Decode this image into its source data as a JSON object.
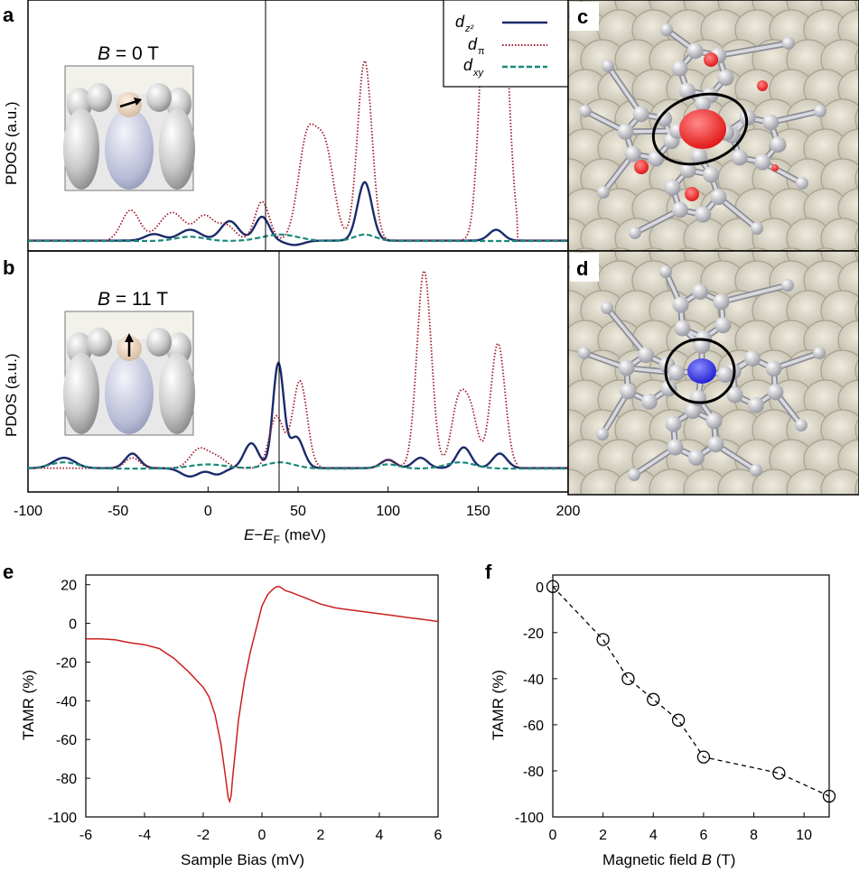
{
  "figure": {
    "panels": {
      "a": "a",
      "b": "b",
      "c": "c",
      "d": "d",
      "e": "e",
      "f": "f"
    }
  },
  "pdos_legend": {
    "dz2": {
      "base": "d",
      "sub": "z²"
    },
    "dpi": {
      "base": "d",
      "sub": "π"
    },
    "dxy": {
      "base": "d",
      "sub": "xy"
    }
  },
  "colors": {
    "dz2": "#1b2a6b",
    "dpi": "#a01c2e",
    "dxy": "#1a8a7a",
    "tamr_e": "#cc1f1f",
    "tamr_f": "#000000",
    "spin_c": "#ff2020",
    "spin_d": "#2828e0"
  },
  "insets": {
    "a_label": {
      "prefix": "B",
      "value": " = 0 T"
    },
    "b_label": {
      "prefix": "B",
      "value": " = 11 T"
    }
  },
  "chart_data": [
    {
      "id": "a",
      "type": "line",
      "ylabel": "PDOS (a.u.)",
      "xlim": [
        -100,
        200
      ],
      "fermi_marker_meV": 32,
      "series": [
        {
          "name": "dz2",
          "style": "solid",
          "peaks": [
            [
              -30,
              0.03,
              5
            ],
            [
              -10,
              0.05,
              6
            ],
            [
              12,
              0.09,
              5
            ],
            [
              30,
              0.11,
              4
            ],
            [
              87,
              0.27,
              4
            ],
            [
              48,
              -0.02,
              5
            ],
            [
              160,
              0.05,
              4
            ]
          ],
          "base": 0.015
        },
        {
          "name": "dpi",
          "style": "dotted",
          "peaks": [
            [
              -43,
              0.14,
              5
            ],
            [
              -20,
              0.13,
              7
            ],
            [
              -2,
              0.11,
              5
            ],
            [
              10,
              0.07,
              5
            ],
            [
              30,
              0.18,
              4
            ],
            [
              55,
              0.46,
              5
            ],
            [
              65,
              0.41,
              5
            ],
            [
              87,
              0.83,
              4
            ],
            [
              155,
              1.2,
              4
            ],
            [
              163,
              1.2,
              4
            ]
          ],
          "base": 0.015
        },
        {
          "name": "dxy",
          "style": "dashed",
          "peaks": [
            [
              -10,
              0.02,
              8
            ],
            [
              40,
              0.03,
              10
            ],
            [
              87,
              0.03,
              6
            ]
          ],
          "base": 0.01
        }
      ]
    },
    {
      "id": "b",
      "type": "line",
      "ylabel": "PDOS (a.u.)",
      "xlim": [
        -100,
        200
      ],
      "xlabel": "E−E_F (meV)",
      "xticks": [
        -100,
        -50,
        0,
        50,
        100,
        150,
        200
      ],
      "fermi_marker_meV": 39,
      "series": [
        {
          "name": "dz2",
          "style": "solid",
          "peaks": [
            [
              -80,
              0.05,
              6
            ],
            [
              -42,
              0.07,
              4
            ],
            [
              -10,
              -0.04,
              5
            ],
            [
              5,
              -0.03,
              4
            ],
            [
              24,
              0.12,
              4
            ],
            [
              39,
              0.5,
              3
            ],
            [
              49,
              0.15,
              4
            ],
            [
              100,
              0.04,
              4
            ],
            [
              118,
              0.05,
              4
            ],
            [
              142,
              0.1,
              4
            ],
            [
              162,
              0.07,
              4
            ]
          ],
          "base": 0.015
        },
        {
          "name": "dpi",
          "style": "dotted",
          "peaks": [
            [
              -88,
              0.05,
              5
            ],
            [
              -72,
              0.06,
              5
            ],
            [
              -42,
              0.05,
              4
            ],
            [
              -5,
              0.09,
              5
            ],
            [
              5,
              0.05,
              5
            ],
            [
              38,
              0.25,
              4
            ],
            [
              51,
              0.42,
              4
            ],
            [
              100,
              0.04,
              4
            ],
            [
              120,
              0.95,
              4
            ],
            [
              139,
              0.3,
              4
            ],
            [
              146,
              0.25,
              4
            ],
            [
              161,
              0.6,
              4
            ]
          ],
          "base": 0.015
        },
        {
          "name": "dxy",
          "style": "dashed",
          "peaks": [
            [
              -80,
              0.03,
              8
            ],
            [
              0,
              0.02,
              10
            ],
            [
              40,
              0.03,
              8
            ],
            [
              100,
              0.02,
              6
            ],
            [
              140,
              0.03,
              8
            ]
          ],
          "base": 0.01
        }
      ]
    },
    {
      "id": "e",
      "type": "line",
      "xlabel": "Sample Bias (mV)",
      "ylabel": "TAMR (%)",
      "xlim": [
        -6,
        6
      ],
      "ylim": [
        -100,
        25
      ],
      "xticks": [
        -6,
        -4,
        -2,
        0,
        2,
        4,
        6
      ],
      "yticks": [
        -100,
        -80,
        -60,
        -40,
        -20,
        0,
        20
      ],
      "series": [
        {
          "name": "",
          "x": [
            -6,
            -5.5,
            -5,
            -4.5,
            -4,
            -3.5,
            -3,
            -2.5,
            -2,
            -1.8,
            -1.6,
            -1.4,
            -1.3,
            -1.2,
            -1.15,
            -1.1,
            -1.05,
            -1,
            -0.9,
            -0.8,
            -0.6,
            -0.4,
            -0.2,
            0,
            0.2,
            0.4,
            0.5,
            0.6,
            0.8,
            1,
            1.5,
            2,
            2.5,
            3,
            3.5,
            4,
            4.5,
            5,
            5.5,
            6
          ],
          "y": [
            -8,
            -8,
            -8.5,
            -10,
            -11,
            -13,
            -18,
            -25,
            -33,
            -38,
            -47,
            -62,
            -73,
            -84,
            -90,
            -92,
            -89,
            -80,
            -65,
            -50,
            -30,
            -15,
            -3,
            9,
            15,
            18,
            19,
            19,
            17,
            16,
            13,
            10,
            8,
            7,
            6,
            5,
            4,
            3,
            2,
            1
          ]
        }
      ]
    },
    {
      "id": "f",
      "type": "scatter",
      "xlabel_prefix": "Magnetic field ",
      "xlabel_var": "B",
      "xlabel_suffix": " (T)",
      "ylabel": "TAMR (%)",
      "xlim": [
        0,
        11
      ],
      "ylim": [
        -100,
        5
      ],
      "xticks": [
        0,
        2,
        4,
        6,
        8,
        10
      ],
      "yticks": [
        -100,
        -80,
        -60,
        -40,
        -20,
        0
      ],
      "series": [
        {
          "name": "",
          "x": [
            0,
            2,
            3,
            4,
            5,
            6,
            9,
            11
          ],
          "y": [
            0,
            -23,
            -40,
            -49,
            -58,
            -74,
            -81,
            -91
          ]
        }
      ]
    }
  ]
}
